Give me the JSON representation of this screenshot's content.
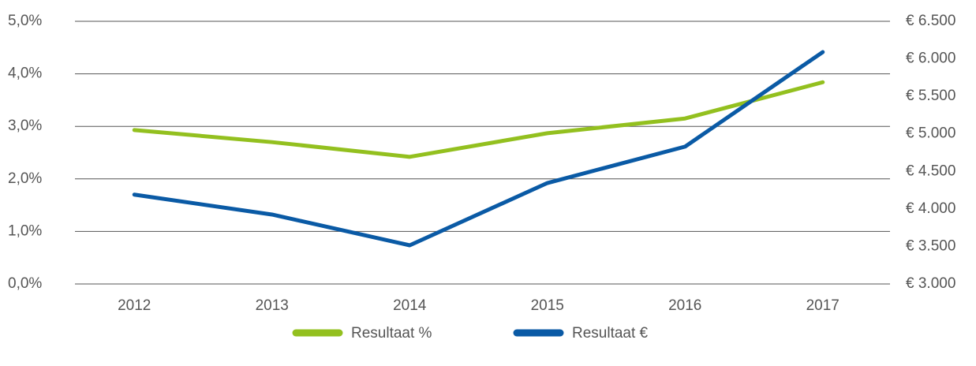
{
  "chart_data": {
    "type": "line",
    "categories": [
      "2012",
      "2013",
      "2014",
      "2015",
      "2016",
      "2017"
    ],
    "series": [
      {
        "name": "Resultaat %",
        "color": "#93c01f",
        "values": [
          2.93,
          2.7,
          2.42,
          2.87,
          3.15,
          3.84
        ]
      },
      {
        "name": "Resultaat €",
        "color": "#0a5aa5",
        "axis": "y2",
        "values": [
          4190,
          3925,
          3515,
          4345,
          4830,
          6090
        ]
      }
    ],
    "ylim": [
      0,
      5
    ],
    "yticks": [
      {
        "value": 0,
        "label": "0,0%"
      },
      {
        "value": 1,
        "label": "1,0%"
      },
      {
        "value": 2,
        "label": "2,0%"
      },
      {
        "value": 3,
        "label": "3,0%"
      },
      {
        "value": 4,
        "label": "4,0%"
      },
      {
        "value": 5,
        "label": "5,0%"
      }
    ],
    "y2lim": [
      3000,
      6500
    ],
    "y2ticks": [
      {
        "value": 3000,
        "label": "€ 3.000"
      },
      {
        "value": 3500,
        "label": "€ 3.500"
      },
      {
        "value": 4000,
        "label": "€ 4.000"
      },
      {
        "value": 4500,
        "label": "€ 4.500"
      },
      {
        "value": 5000,
        "label": "€ 5.000"
      },
      {
        "value": 5500,
        "label": "€ 5.500"
      },
      {
        "value": 6000,
        "label": "€ 6.000"
      },
      {
        "value": 6500,
        "label": "€ 6.500"
      }
    ],
    "grid": true
  }
}
